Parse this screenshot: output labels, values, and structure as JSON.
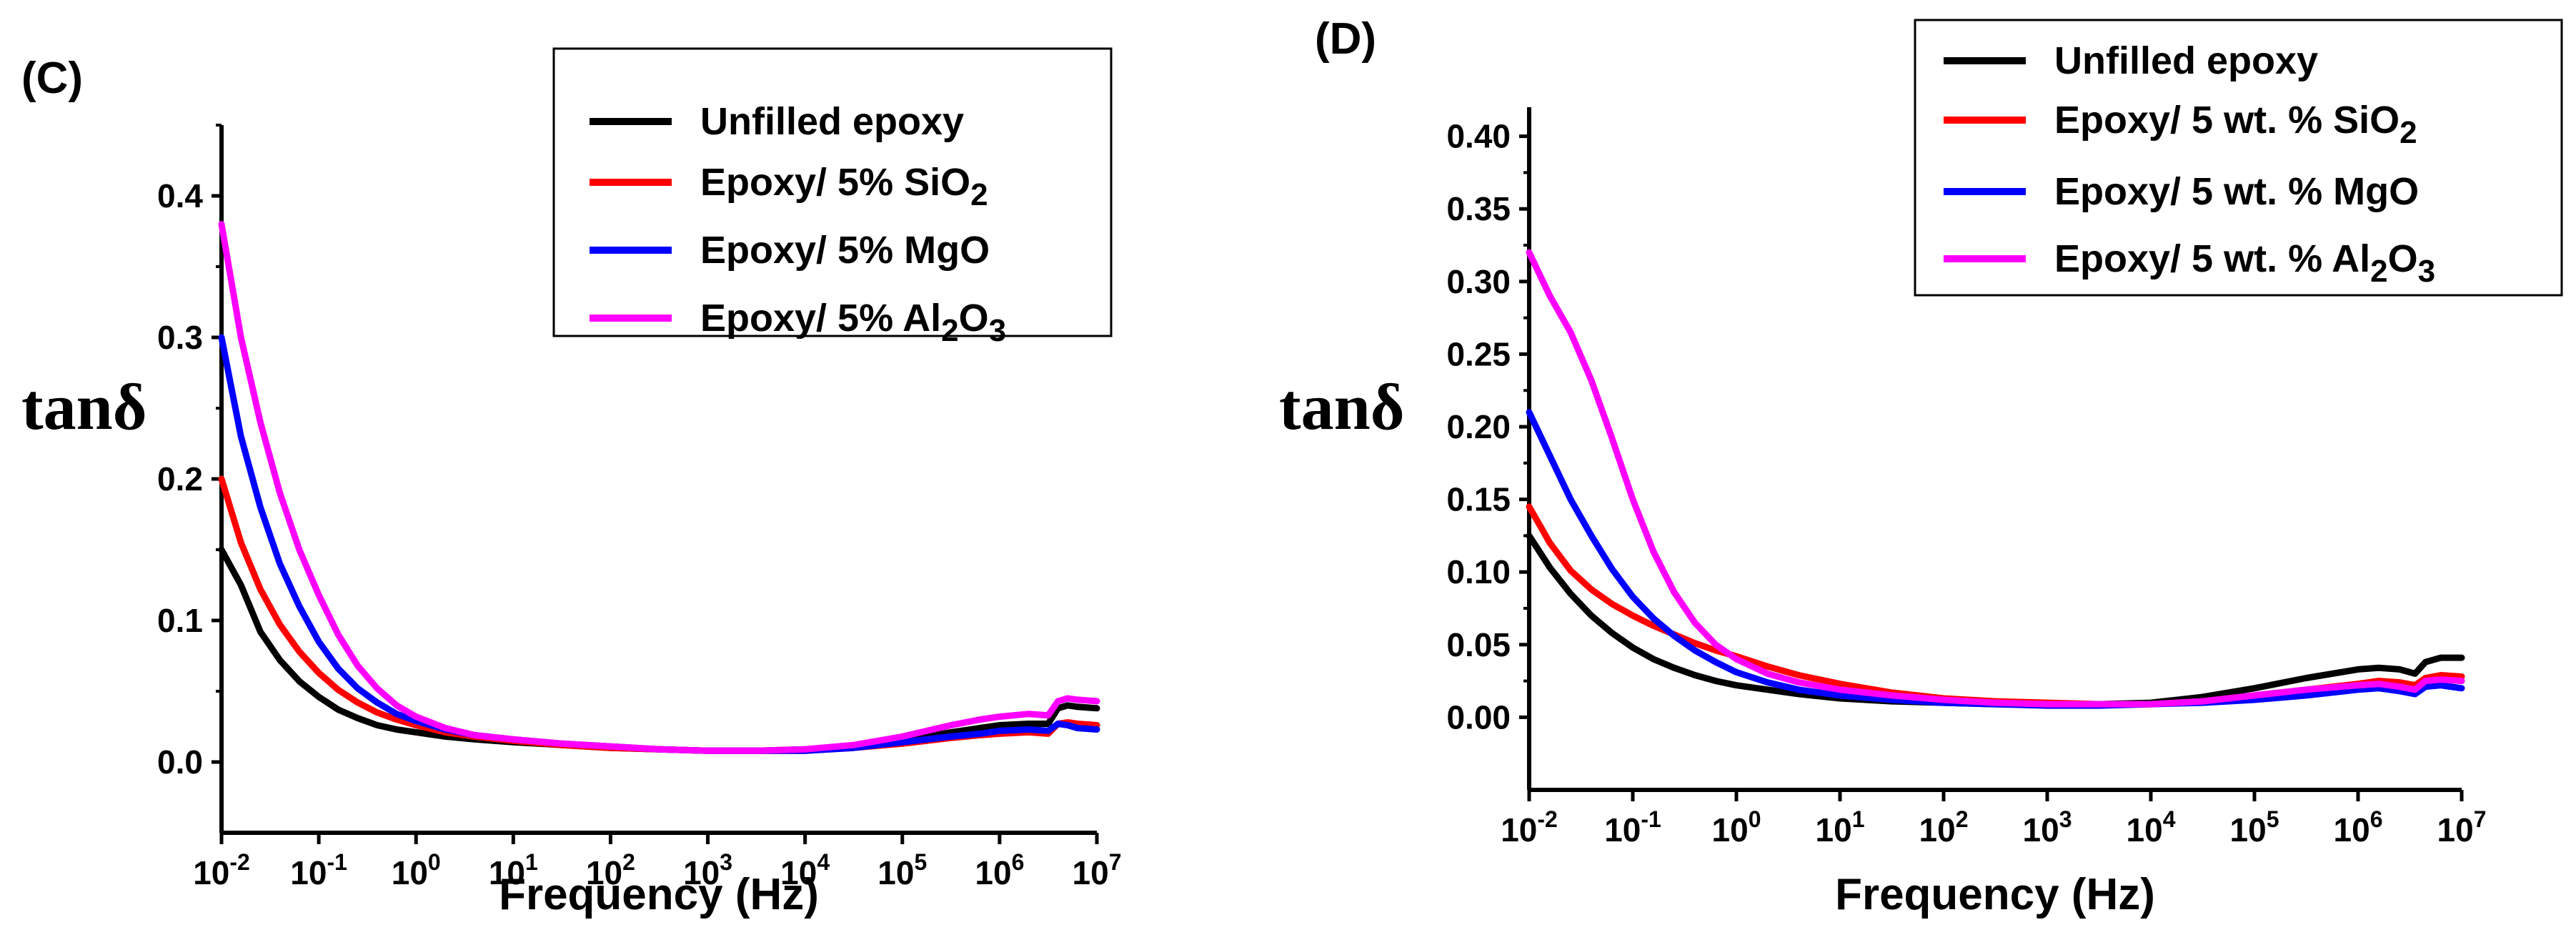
{
  "chart_data": [
    {
      "panel_label": "(C)",
      "type": "line",
      "xscale": "log",
      "xlim": [
        0.01,
        10000000
      ],
      "ylim": [
        -0.05,
        0.45
      ],
      "xlabel": "Frequency (Hz)",
      "ylabel": "tanδ",
      "yticks": [
        "0.0",
        "0.1",
        "0.2",
        "0.3",
        "0.4"
      ],
      "ytick_values": [
        0.0,
        0.1,
        0.2,
        0.3,
        0.4
      ],
      "xtick_exponents": [
        "-2",
        "-1",
        "0",
        "1",
        "2",
        "3",
        "4",
        "5",
        "6",
        "7"
      ],
      "legend_position": "top-right",
      "x": [
        -2,
        -1.8,
        -1.6,
        -1.4,
        -1.2,
        -1,
        -0.8,
        -0.6,
        -0.4,
        -0.2,
        0,
        0.3,
        0.6,
        1,
        1.5,
        2,
        2.5,
        3,
        3.5,
        4,
        4.5,
        5,
        5.5,
        5.8,
        6,
        6.3,
        6.5,
        6.6,
        6.7,
        6.8,
        7
      ],
      "series": [
        {
          "name": "Unfilled epoxy",
          "legend_main": "Unfilled epoxy",
          "legend_sub": "",
          "legend_tail": "",
          "color": "#000000",
          "values": [
            0.15,
            0.125,
            0.092,
            0.072,
            0.057,
            0.046,
            0.037,
            0.031,
            0.026,
            0.023,
            0.021,
            0.018,
            0.016,
            0.014,
            0.012,
            0.01,
            0.009,
            0.008,
            0.008,
            0.009,
            0.011,
            0.015,
            0.021,
            0.024,
            0.026,
            0.027,
            0.027,
            0.038,
            0.04,
            0.039,
            0.038
          ]
        },
        {
          "name": "Epoxy/ 5% SiO2",
          "legend_main": "Epoxy/ 5% SiO",
          "legend_sub": "2",
          "legend_tail": "",
          "color": "#ff0000",
          "values": [
            0.2,
            0.155,
            0.122,
            0.097,
            0.078,
            0.063,
            0.051,
            0.042,
            0.035,
            0.03,
            0.026,
            0.021,
            0.018,
            0.015,
            0.012,
            0.01,
            0.009,
            0.008,
            0.008,
            0.008,
            0.01,
            0.013,
            0.017,
            0.019,
            0.02,
            0.021,
            0.02,
            0.027,
            0.028,
            0.027,
            0.026
          ]
        },
        {
          "name": "Epoxy/ 5% MgO",
          "legend_main": "Epoxy/ 5% MgO",
          "legend_sub": "",
          "legend_tail": "",
          "color": "#0000ff",
          "values": [
            0.3,
            0.23,
            0.18,
            0.14,
            0.11,
            0.085,
            0.066,
            0.052,
            0.042,
            0.034,
            0.029,
            0.023,
            0.019,
            0.016,
            0.013,
            0.011,
            0.009,
            0.008,
            0.008,
            0.008,
            0.01,
            0.014,
            0.018,
            0.02,
            0.022,
            0.023,
            0.022,
            0.027,
            0.026,
            0.024,
            0.023
          ]
        },
        {
          "name": "Epoxy/ 5% Al2O3",
          "legend_main": "Epoxy/ 5% Al",
          "legend_sub": "2",
          "legend_tail": "O3",
          "color": "#ff00ff",
          "values": [
            0.38,
            0.3,
            0.24,
            0.19,
            0.15,
            0.118,
            0.09,
            0.068,
            0.052,
            0.04,
            0.032,
            0.024,
            0.019,
            0.016,
            0.013,
            0.011,
            0.009,
            0.008,
            0.008,
            0.009,
            0.012,
            0.018,
            0.026,
            0.03,
            0.032,
            0.034,
            0.033,
            0.043,
            0.045,
            0.044,
            0.043
          ]
        }
      ]
    },
    {
      "panel_label": "(D)",
      "type": "line",
      "xscale": "log",
      "xlim": [
        0.01,
        10000000
      ],
      "ylim": [
        -0.05,
        0.42
      ],
      "xlabel": "Frequency (Hz)",
      "ylabel": "tanδ",
      "yticks": [
        "0.00",
        "0.05",
        "0.10",
        "0.15",
        "0.20",
        "0.25",
        "0.30",
        "0.35",
        "0.40"
      ],
      "ytick_values": [
        0.0,
        0.05,
        0.1,
        0.15,
        0.2,
        0.25,
        0.3,
        0.35,
        0.4
      ],
      "xtick_exponents": [
        "-2",
        "-1",
        "0",
        "1",
        "2",
        "3",
        "4",
        "5",
        "6",
        "7"
      ],
      "legend_position": "top-right",
      "x": [
        -2,
        -1.8,
        -1.6,
        -1.4,
        -1.2,
        -1,
        -0.8,
        -0.6,
        -0.4,
        -0.2,
        0,
        0.3,
        0.6,
        1,
        1.5,
        2,
        2.5,
        3,
        3.5,
        4,
        4.5,
        5,
        5.5,
        6,
        6.2,
        6.4,
        6.55,
        6.65,
        6.8,
        7
      ],
      "series": [
        {
          "name": "Unfilled epoxy",
          "legend_main": "Unfilled epoxy",
          "legend_sub": "",
          "legend_tail": "",
          "color": "#000000",
          "values": [
            0.125,
            0.103,
            0.085,
            0.07,
            0.058,
            0.048,
            0.04,
            0.034,
            0.029,
            0.025,
            0.022,
            0.019,
            0.016,
            0.013,
            0.011,
            0.01,
            0.009,
            0.009,
            0.009,
            0.01,
            0.014,
            0.02,
            0.027,
            0.033,
            0.034,
            0.033,
            0.03,
            0.038,
            0.041,
            0.041
          ]
        },
        {
          "name": "Epoxy/ 5 wt. % SiO2",
          "legend_main": "Epoxy/ 5 wt. % SiO",
          "legend_sub": "2",
          "legend_tail": "",
          "color": "#ff0000",
          "values": [
            0.145,
            0.12,
            0.101,
            0.088,
            0.078,
            0.07,
            0.063,
            0.057,
            0.051,
            0.046,
            0.042,
            0.035,
            0.029,
            0.023,
            0.017,
            0.013,
            0.011,
            0.01,
            0.009,
            0.009,
            0.011,
            0.015,
            0.019,
            0.023,
            0.025,
            0.024,
            0.022,
            0.027,
            0.029,
            0.028
          ]
        },
        {
          "name": "Epoxy/ 5 wt. % MgO",
          "legend_main": "Epoxy/ 5 wt. % MgO",
          "legend_sub": "",
          "legend_tail": "",
          "color": "#0000ff",
          "values": [
            0.21,
            0.18,
            0.15,
            0.125,
            0.102,
            0.083,
            0.068,
            0.056,
            0.046,
            0.038,
            0.031,
            0.024,
            0.019,
            0.015,
            0.012,
            0.01,
            0.009,
            0.008,
            0.008,
            0.009,
            0.01,
            0.012,
            0.015,
            0.019,
            0.02,
            0.018,
            0.016,
            0.021,
            0.022,
            0.02
          ]
        },
        {
          "name": "Epoxy/ 5 wt. % Al2O3",
          "legend_main": "Epoxy/ 5 wt. % Al",
          "legend_sub": "2",
          "legend_tail": "O3",
          "color": "#ff00ff",
          "values": [
            0.32,
            0.29,
            0.265,
            0.232,
            0.192,
            0.15,
            0.114,
            0.086,
            0.065,
            0.05,
            0.04,
            0.03,
            0.024,
            0.019,
            0.015,
            0.012,
            0.01,
            0.009,
            0.009,
            0.009,
            0.011,
            0.015,
            0.019,
            0.022,
            0.023,
            0.021,
            0.019,
            0.025,
            0.026,
            0.025
          ]
        }
      ]
    }
  ]
}
